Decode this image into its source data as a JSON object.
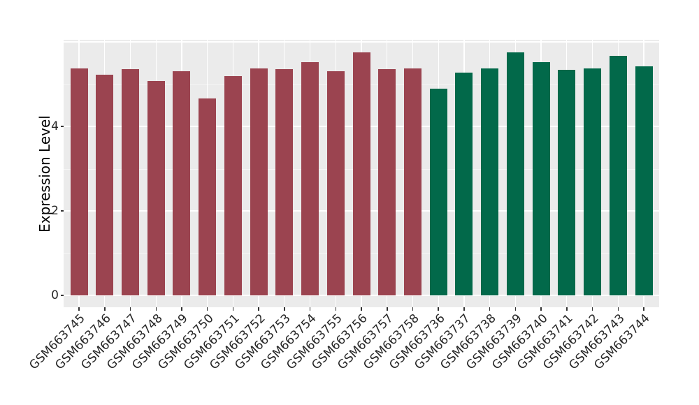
{
  "chart_data": {
    "type": "bar",
    "title": "",
    "xlabel": "",
    "ylabel": "Expression Level",
    "yticks": [
      0,
      2,
      4
    ],
    "ygrid_major": [
      0,
      2,
      4,
      6
    ],
    "ygrid_minor": [
      1,
      3,
      5
    ],
    "ylim": [
      -0.28,
      6.05
    ],
    "legend": "none",
    "panel_background": "#EBEBEB",
    "gridline_color": "#FFFFFF",
    "axis_text_color": "#262626",
    "categories": [
      "GSM663745",
      "GSM663746",
      "GSM663747",
      "GSM663748",
      "GSM663749",
      "GSM663750",
      "GSM663751",
      "GSM663752",
      "GSM663753",
      "GSM663754",
      "GSM663755",
      "GSM663756",
      "GSM663757",
      "GSM663758",
      "GSM663736",
      "GSM663737",
      "GSM663738",
      "GSM663739",
      "GSM663740",
      "GSM663741",
      "GSM663742",
      "GSM663743",
      "GSM663744"
    ],
    "values": [
      5.37,
      5.23,
      5.35,
      5.08,
      5.31,
      4.67,
      5.19,
      5.38,
      5.35,
      5.52,
      5.3,
      5.76,
      5.35,
      5.37,
      4.89,
      5.28,
      5.38,
      5.75,
      5.52,
      5.34,
      5.37,
      5.67,
      5.43
    ],
    "bar_groups": [
      0,
      0,
      0,
      0,
      0,
      0,
      0,
      0,
      0,
      0,
      0,
      0,
      0,
      0,
      1,
      1,
      1,
      1,
      1,
      1,
      1,
      1,
      1
    ],
    "group_colors": [
      "#9B4450",
      "#02694A"
    ]
  }
}
